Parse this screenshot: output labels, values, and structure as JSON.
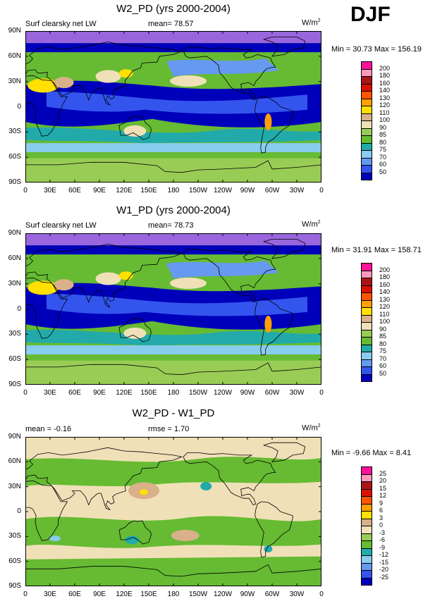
{
  "season": "DJF",
  "lat_labels": [
    "90N",
    "60N",
    "30N",
    "0",
    "30S",
    "60S",
    "90S"
  ],
  "lon_labels": [
    "0",
    "30E",
    "60E",
    "90E",
    "120E",
    "150E",
    "180",
    "150W",
    "120W",
    "90W",
    "60W",
    "30W",
    "0"
  ],
  "colors": {
    "abs_scale": [
      "#9966dd",
      "#0000bb",
      "#3355ee",
      "#6699f0",
      "#88ccee",
      "#22aaaa",
      "#66bb33",
      "#99cc55",
      "#f0e0b8",
      "#d8b08a",
      "#ffe000",
      "#ffa000",
      "#ff5500",
      "#dd1100",
      "#aa1515",
      "#ff99bb",
      "#ff1199"
    ],
    "diff_scale": [
      "#9966dd",
      "#0000bb",
      "#3355ee",
      "#6699f0",
      "#88ccee",
      "#22aaaa",
      "#66bb33",
      "#99cc55",
      "#f0e0b8",
      "#d8b08a",
      "#ffe000",
      "#ffa000",
      "#ff5500",
      "#dd1100",
      "#aa1515",
      "#ff99bb",
      "#ff1199"
    ]
  },
  "panels": [
    {
      "title": "W2_PD (yrs 2000-2004)",
      "left_label": "Surf clearsky net LW",
      "stat_label": "mean=  78.57",
      "units": "W/m",
      "units_sup": "2",
      "minmax": "Min =  30.73 Max = 156.19",
      "colorbar_labels": [
        "200",
        "180",
        "160",
        "140",
        "130",
        "120",
        "110",
        "100",
        "90",
        "85",
        "80",
        "75",
        "70",
        "60",
        "50"
      ]
    },
    {
      "title": "W1_PD (yrs 2000-2004)",
      "left_label": "Surf clearsky net LW",
      "stat_label": "mean=  78.73",
      "units": "W/m",
      "units_sup": "2",
      "minmax": "Min =  31.91 Max = 158.71",
      "colorbar_labels": [
        "200",
        "180",
        "160",
        "140",
        "130",
        "120",
        "110",
        "100",
        "90",
        "85",
        "80",
        "75",
        "70",
        "60",
        "50"
      ]
    },
    {
      "title": "W2_PD - W1_PD",
      "left_label": "mean =  -0.16",
      "stat_label": "rmse =   1.70",
      "units": "W/m",
      "units_sup": "2",
      "minmax": "Min =  -9.66 Max =   8.41",
      "colorbar_labels": [
        "25",
        "20",
        "15",
        "12",
        "9",
        "6",
        "3",
        "0",
        "-3",
        "-6",
        "-9",
        "-12",
        "-15",
        "-20",
        "-25"
      ]
    }
  ],
  "chart_data": [
    {
      "type": "heatmap",
      "title": "W2_PD (yrs 2000-2004)",
      "variable": "Surf clearsky net LW",
      "units": "W/m2",
      "mean": 78.57,
      "min": 30.73,
      "max": 156.19,
      "x_ticks": [
        "0",
        "30E",
        "60E",
        "90E",
        "120E",
        "150E",
        "180",
        "150W",
        "120W",
        "90W",
        "60W",
        "30W",
        "0"
      ],
      "y_ticks": [
        "90N",
        "60N",
        "30N",
        "0",
        "30S",
        "60S",
        "90S"
      ],
      "contour_levels": [
        50,
        60,
        70,
        75,
        80,
        85,
        90,
        100,
        110,
        120,
        130,
        140,
        160,
        180,
        200
      ]
    },
    {
      "type": "heatmap",
      "title": "W1_PD (yrs 2000-2004)",
      "variable": "Surf clearsky net LW",
      "units": "W/m2",
      "mean": 78.73,
      "min": 31.91,
      "max": 158.71,
      "x_ticks": [
        "0",
        "30E",
        "60E",
        "90E",
        "120E",
        "150E",
        "180",
        "150W",
        "120W",
        "90W",
        "60W",
        "30W",
        "0"
      ],
      "y_ticks": [
        "90N",
        "60N",
        "30N",
        "0",
        "30S",
        "60S",
        "90S"
      ],
      "contour_levels": [
        50,
        60,
        70,
        75,
        80,
        85,
        90,
        100,
        110,
        120,
        130,
        140,
        160,
        180,
        200
      ]
    },
    {
      "type": "heatmap",
      "title": "W2_PD - W1_PD",
      "units": "W/m2",
      "mean": -0.16,
      "rmse": 1.7,
      "min": -9.66,
      "max": 8.41,
      "x_ticks": [
        "0",
        "30E",
        "60E",
        "90E",
        "120E",
        "150E",
        "180",
        "150W",
        "120W",
        "90W",
        "60W",
        "30W",
        "0"
      ],
      "y_ticks": [
        "90N",
        "60N",
        "30N",
        "0",
        "30S",
        "60S",
        "90S"
      ],
      "contour_levels": [
        -25,
        -20,
        -15,
        -12,
        -9,
        -6,
        -3,
        0,
        3,
        6,
        9,
        12,
        15,
        20,
        25
      ]
    }
  ]
}
